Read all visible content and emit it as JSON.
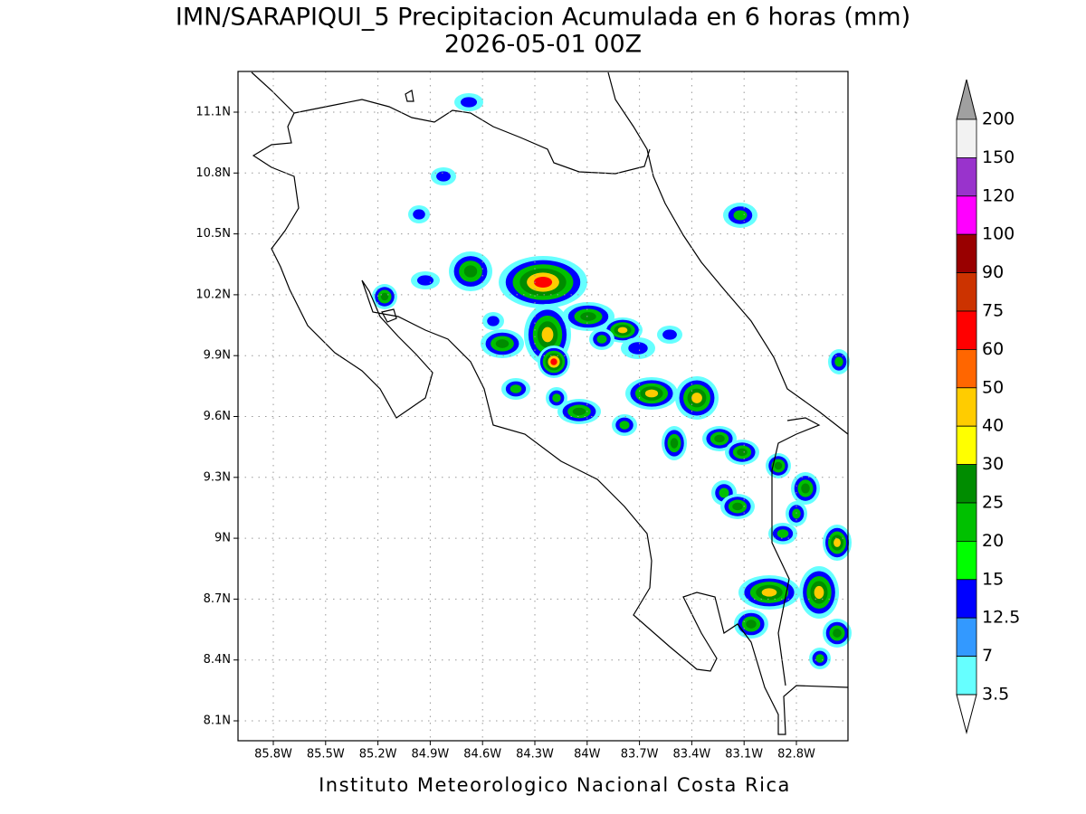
{
  "header": {
    "title": "IMN/SARAPIQUI_5 Precipitacion Acumulada en 6 horas (mm)",
    "subtitle": "2026-05-01 00Z"
  },
  "map": {
    "lon_ticks": [
      "85.8W",
      "85.5W",
      "85.2W",
      "84.9W",
      "84.6W",
      "84.3W",
      "84W",
      "83.7W",
      "83.4W",
      "83.1W",
      "82.8W"
    ],
    "lat_ticks": [
      "11.1N",
      "10.8N",
      "10.5N",
      "10.2N",
      "9.9N",
      "9.6N",
      "9.3N",
      "9N",
      "8.7N",
      "8.4N",
      "8.1N"
    ]
  },
  "colorbar": {
    "levels": [
      200,
      150,
      120,
      100,
      90,
      75,
      60,
      50,
      40,
      30,
      25,
      20,
      15,
      12.5,
      7,
      3.5
    ],
    "colors": [
      "#f2f2f2",
      "#9933cc",
      "#ff00ff",
      "#990000",
      "#cc3300",
      "#ff0000",
      "#ff6600",
      "#ffcc00",
      "#ffff00",
      "#008c00",
      "#00c000",
      "#00ff00",
      "#0000ff",
      "#3399ff",
      "#66ffff"
    ],
    "over_color": "#a0a0a0",
    "under_color": "#ffffff"
  },
  "footer": "Instituto Meteorologico Nacional Costa Rica"
}
